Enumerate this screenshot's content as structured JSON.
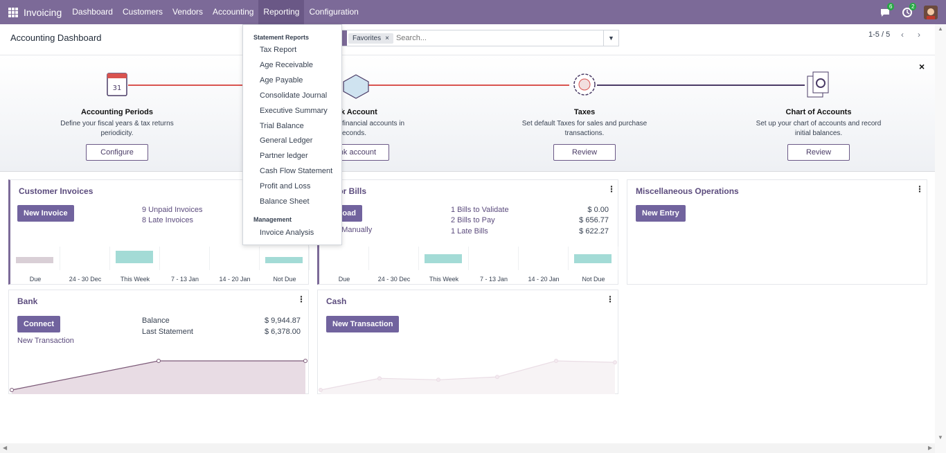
{
  "navbar": {
    "app_name": "Invoicing",
    "menu": [
      "Dashboard",
      "Customers",
      "Vendors",
      "Accounting",
      "Reporting",
      "Configuration"
    ],
    "messages_count": "6",
    "activities_count": "2",
    "accent": "#7c6a98"
  },
  "control": {
    "title": "Accounting Dashboard",
    "facet": "Favorites",
    "facet_remove": "×",
    "search_placeholder": "Search...",
    "pager": "1-5 / 5"
  },
  "onboarding": {
    "close": "×",
    "steps": [
      {
        "title": "Accounting Periods",
        "desc1": "Define your fiscal years & tax returns",
        "desc2": "periodicity.",
        "button": "Configure"
      },
      {
        "title": "k Account",
        "desc1": "financial accounts in",
        "desc2": "econds.",
        "button": "bank account"
      },
      {
        "title": "Taxes",
        "desc1": "Set default Taxes for sales and purchase",
        "desc2": "transactions.",
        "button": "Review"
      },
      {
        "title": "Chart of Accounts",
        "desc1": "Set up your chart of accounts and record",
        "desc2": "initial balances.",
        "button": "Review"
      }
    ]
  },
  "reporting_menu": {
    "section1": "Statement Reports",
    "items1": [
      "Tax Report",
      "Age Receivable",
      "Age Payable",
      "Consolidate Journal",
      "Executive Summary",
      "Trial Balance",
      "General Ledger",
      "Partner ledger",
      "Cash Flow Statement",
      "Profit and Loss",
      "Balance Sheet"
    ],
    "section2": "Management",
    "items2": [
      "Invoice Analysis"
    ]
  },
  "customer_invoices": {
    "title": "Customer Invoices",
    "button": "New Invoice",
    "unpaid": "9 Unpaid Invoices",
    "late": "8 Late Invoices"
  },
  "vendor_bills": {
    "title": "dor Bills",
    "button": "load",
    "manual": "te Manually",
    "rows": [
      {
        "label": "1 Bills to Validate",
        "amount": "$ 0.00"
      },
      {
        "label": "2 Bills to Pay",
        "amount": "$ 656.77"
      },
      {
        "label": "1 Late Bills",
        "amount": "$ 622.27"
      }
    ]
  },
  "misc_ops": {
    "title": "Miscellaneous Operations",
    "button": "New Entry"
  },
  "bank": {
    "title": "Bank",
    "button": "Connect",
    "link": "New Transaction",
    "balance_label": "Balance",
    "balance": "$ 9,944.87",
    "last_label": "Last Statement",
    "last": "$ 6,378.00"
  },
  "cash": {
    "title": "Cash",
    "button": "New Transaction"
  },
  "chart_data": [
    {
      "type": "bar",
      "title": "Customer Invoices",
      "categories": [
        "Due",
        "24 - 30 Dec",
        "This Week",
        "7 - 13 Jan",
        "14 - 20 Jan",
        "Not Due"
      ],
      "values": [
        2,
        0,
        4,
        0,
        0,
        2
      ],
      "colors": [
        "#d9cfd6",
        "#a3dbd6",
        "#a3dbd6",
        "#a3dbd6",
        "#a3dbd6",
        "#a3dbd6"
      ]
    },
    {
      "type": "bar",
      "title": "Vendor Bills",
      "categories": [
        "Due",
        "24 - 30 Dec",
        "This Week",
        "7 - 13 Jan",
        "14 - 20 Jan",
        "Not Due"
      ],
      "values": [
        0,
        0,
        3,
        0,
        0,
        3
      ],
      "colors": [
        "#a3dbd6",
        "#a3dbd6",
        "#a3dbd6",
        "#a3dbd6",
        "#a3dbd6",
        "#a3dbd6"
      ]
    },
    {
      "type": "area",
      "title": "Bank",
      "x": [
        0,
        1,
        2
      ],
      "y": [
        0,
        1,
        1
      ],
      "color": "#7c5a78"
    },
    {
      "type": "area",
      "title": "Cash",
      "x": [
        0,
        1,
        2,
        3,
        4,
        5
      ],
      "y": [
        0,
        0.4,
        0.35,
        0.45,
        1,
        0.95
      ],
      "color": "#e8e0e6"
    }
  ]
}
